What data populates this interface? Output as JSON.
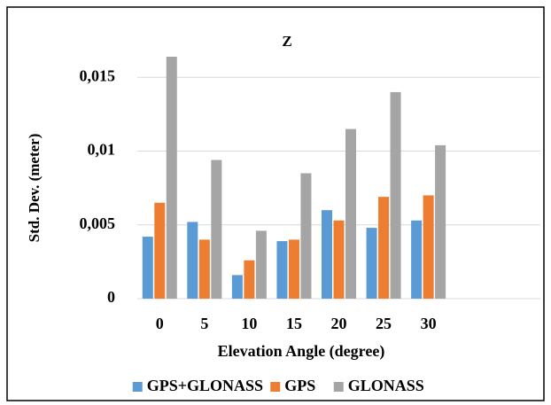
{
  "chart_data": {
    "type": "bar",
    "title": "Z",
    "x_label": "Elevation Angle (degree)",
    "y_label": "Std. Dev. (meter)",
    "categories": [
      "0",
      "5",
      "10",
      "15",
      "20",
      "25",
      "30",
      null,
      null
    ],
    "series": [
      {
        "name": "GPS+GLONASS",
        "color": "#5b9bd5",
        "values": [
          0.0042,
          0.0052,
          0.0016,
          0.0039,
          0.006,
          0.0048,
          0.0053,
          null,
          null
        ]
      },
      {
        "name": "GPS",
        "color": "#ed7d31",
        "values": [
          0.0065,
          0.004,
          0.0026,
          0.004,
          0.0053,
          0.0069,
          0.007,
          null,
          null
        ]
      },
      {
        "name": "GLONASS",
        "color": "#a5a5a5",
        "values": [
          0.0164,
          0.0094,
          0.0046,
          0.0085,
          0.0115,
          0.014,
          0.0104,
          null,
          null
        ]
      }
    ],
    "ylim": [
      0,
      0.017
    ],
    "yticks": [
      0,
      {
        "value": 0.005,
        "label": "0,005"
      },
      {
        "value": 0.01,
        "label": "0,01"
      },
      {
        "value": 0.015,
        "label": "0,015"
      }
    ],
    "grid": true,
    "legend": "bottom"
  }
}
